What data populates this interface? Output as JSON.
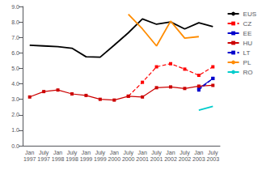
{
  "chart_data": {
    "type": "line",
    "categories": [
      "Jan\n1997",
      "July\n1997",
      "Jan\n1998",
      "July\n1998",
      "Jan\n1999",
      "July\n1999",
      "Jan\n2000",
      "July\n2000",
      "Jan\n2001",
      "July\n2001",
      "Jan\n2002",
      "July\n2002",
      "Jan\n2003",
      "July\n2003"
    ],
    "series": [
      {
        "name": "EUS",
        "color": "#000000",
        "line_style": "solid",
        "values": [
          6.5,
          6.45,
          6.4,
          6.3,
          5.75,
          5.72,
          6.5,
          7.3,
          8.2,
          7.85,
          8.0,
          7.55,
          7.95,
          7.7
        ]
      },
      {
        "name": "CZ",
        "color": "#ff0000",
        "marker": "square",
        "line_style": "dashed",
        "values": [
          null,
          null,
          null,
          null,
          null,
          null,
          null,
          3.2,
          4.1,
          5.1,
          5.3,
          4.95,
          4.55,
          5.1
        ]
      },
      {
        "name": "EE",
        "color": "#0000cc",
        "marker": "square",
        "line_style": "solid",
        "values": [
          null,
          null,
          null,
          null,
          null,
          null,
          null,
          null,
          null,
          null,
          null,
          null,
          3.7,
          4.35
        ]
      },
      {
        "name": "HU",
        "color": "#cc0000",
        "marker": "square",
        "line_style": "solid",
        "values": [
          3.15,
          3.5,
          3.6,
          3.35,
          3.25,
          3.0,
          2.95,
          3.2,
          3.15,
          3.75,
          3.8,
          3.7,
          3.85,
          3.9
        ]
      },
      {
        "name": "LT",
        "color": "#0000cc",
        "marker": "square",
        "line_style": "dashed",
        "values": [
          null,
          null,
          null,
          null,
          null,
          null,
          null,
          null,
          null,
          null,
          null,
          null,
          3.6,
          4.35
        ]
      },
      {
        "name": "PL",
        "color": "#ff8c00",
        "line_style": "solid",
        "values": [
          null,
          null,
          null,
          null,
          null,
          null,
          null,
          8.5,
          7.55,
          6.45,
          8.05,
          6.95,
          7.05,
          null
        ]
      },
      {
        "name": "RO",
        "color": "#00cccc",
        "line_style": "solid",
        "values": [
          null,
          null,
          null,
          null,
          null,
          null,
          null,
          null,
          null,
          null,
          null,
          null,
          2.3,
          2.55
        ]
      }
    ],
    "ylim": [
      0.0,
      9.0
    ],
    "yticks": [
      {
        "value": 0,
        "label": "0.0"
      },
      {
        "value": 1,
        "label": "1.0"
      },
      {
        "value": 2,
        "label": "2.0"
      },
      {
        "value": 3,
        "label": "3.0"
      },
      {
        "value": 4,
        "label": "4.0"
      },
      {
        "value": 5,
        "label": "5.0"
      },
      {
        "value": 6,
        "label": "6.0"
      },
      {
        "value": 7,
        "label": "7.0"
      },
      {
        "value": 8,
        "label": "8.0"
      },
      {
        "value": 9,
        "label": "9.0"
      }
    ],
    "grid": false,
    "legend": "upper right"
  }
}
